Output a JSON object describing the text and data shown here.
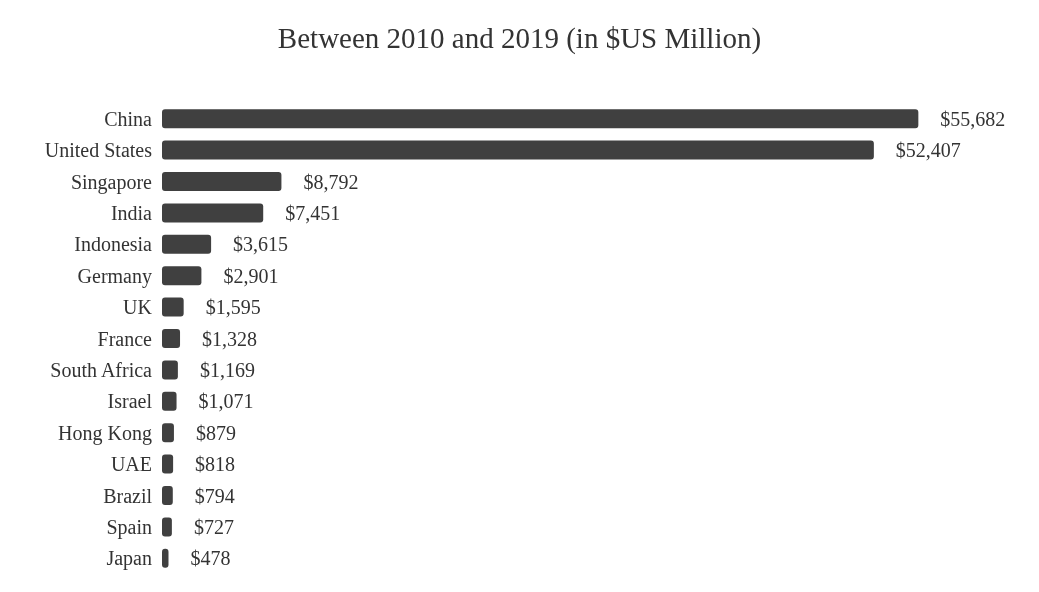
{
  "chart_data": {
    "type": "bar",
    "orientation": "horizontal",
    "title": "Between 2010 and 2019 (in $US Million)",
    "categories": [
      "China",
      "United States",
      "Singapore",
      "India",
      "Indonesia",
      "Germany",
      "UK",
      "France",
      "South Africa",
      "Israel",
      "Hong Kong",
      "UAE",
      "Brazil",
      "Spain",
      "Japan"
    ],
    "values": [
      55682,
      52407,
      8792,
      7451,
      3615,
      2901,
      1595,
      1328,
      1169,
      1071,
      879,
      818,
      794,
      727,
      478
    ],
    "value_labels": [
      "$55,682",
      "$52,407",
      "$8,792",
      "$7,451",
      "$3,615",
      "$2,901",
      "$1,595",
      "$1,328",
      "$1,169",
      "$1,071",
      "$879",
      "$818",
      "$794",
      "$727",
      "$478"
    ],
    "color": "#404040"
  }
}
